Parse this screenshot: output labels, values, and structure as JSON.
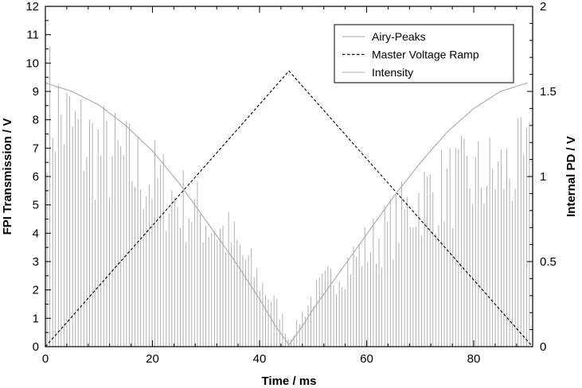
{
  "chart_data": {
    "type": "line",
    "title": "",
    "xlabel": "Time / ms",
    "ylabel_left": "FPI Transmission / V",
    "ylabel_right": "Internal PD / V",
    "xlim": [
      0,
      91
    ],
    "ylim_left": [
      0,
      12
    ],
    "ylim_right": [
      0,
      2
    ],
    "x_ticks": [
      "0",
      "20",
      "40",
      "60",
      "80"
    ],
    "y_left_ticks": [
      "0",
      "1",
      "2",
      "3",
      "4",
      "5",
      "6",
      "7",
      "8",
      "9",
      "10",
      "11",
      "12"
    ],
    "y_right_ticks": [
      "0",
      "0.5",
      "1",
      "1.5",
      "2"
    ],
    "grid": false,
    "legend_position": "top-right",
    "series": [
      {
        "name": "Airy-Peaks",
        "axis": "left",
        "style": "vertical impulse peaks",
        "color": "#a8a8a8",
        "peak_spacing_ms": 0.53,
        "envelope": {
          "x": [
            0,
            5,
            10,
            15,
            20,
            25,
            30,
            35,
            40,
            44,
            45.5,
            48,
            50,
            55,
            60,
            65,
            70,
            75,
            80,
            85,
            90
          ],
          "y": [
            11.2,
            9.8,
            8.9,
            8.3,
            7.6,
            6.6,
            5.8,
            4.8,
            3.0,
            1.5,
            0.2,
            1.5,
            2.3,
            3.5,
            4.5,
            5.5,
            6.8,
            7.3,
            7.6,
            7.9,
            8.2
          ]
        }
      },
      {
        "name": "Master Voltage Ramp",
        "axis": "right",
        "style": "dashed",
        "color": "#000000",
        "x": [
          0,
          45.5,
          91
        ],
        "y": [
          0,
          1.62,
          0
        ]
      },
      {
        "name": "Intensity",
        "axis": "right",
        "style": "solid",
        "color": "#a8a8a8",
        "x": [
          0,
          5,
          10,
          15,
          20,
          25,
          30,
          35,
          40,
          43,
          45.5,
          48,
          50,
          55,
          60,
          65,
          70,
          75,
          80,
          85,
          90
        ],
        "y": [
          1.55,
          1.5,
          1.42,
          1.3,
          1.15,
          0.96,
          0.74,
          0.52,
          0.28,
          0.12,
          0.01,
          0.12,
          0.22,
          0.44,
          0.66,
          0.88,
          1.08,
          1.26,
          1.4,
          1.5,
          1.55
        ]
      }
    ]
  }
}
